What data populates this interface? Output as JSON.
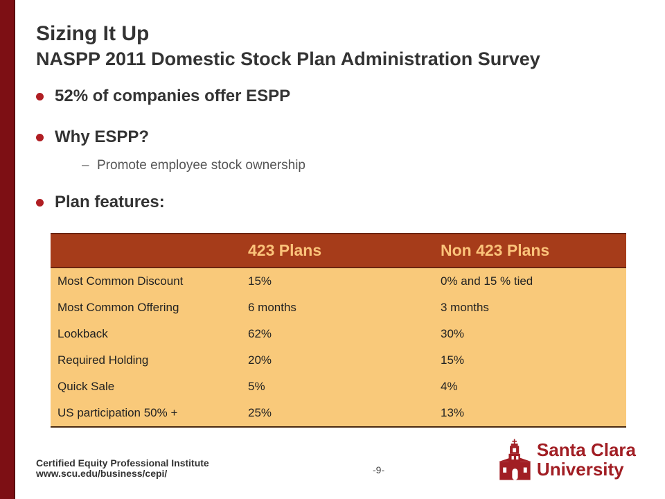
{
  "slide": {
    "title": "Sizing It Up",
    "subtitle": "NASPP 2011 Domestic Stock Plan Administration Survey"
  },
  "bullets": [
    {
      "text": "52% of companies offer ESPP"
    },
    {
      "text": "Why ESPP?",
      "sub": [
        "Promote employee stock ownership"
      ]
    },
    {
      "text": "Plan features:"
    }
  ],
  "table": {
    "headers": [
      "",
      "423 Plans",
      "Non 423 Plans"
    ],
    "rows": [
      [
        "Most Common Discount",
        "15%",
        "0% and 15 % tied"
      ],
      [
        "Most Common Offering",
        "6 months",
        "3 months"
      ],
      [
        "Lookback",
        "62%",
        "30%"
      ],
      [
        "Required Holding",
        "20%",
        "15%"
      ],
      [
        "Quick Sale",
        "5%",
        "4%"
      ],
      [
        "US participation 50% +",
        "25%",
        "13%"
      ]
    ]
  },
  "footer": {
    "organization": "Certified Equity Professional Institute",
    "url": "www.scu.edu/business/cepi/",
    "page": "-9-"
  },
  "logo": {
    "line1": "Santa Clara",
    "line2": "University",
    "icon": "mission-church-icon"
  },
  "colors": {
    "accent_bar": "#7d0f14",
    "bullet": "#b01e23",
    "table_header_bg": "#a63c1a",
    "table_header_text": "#fbc37a",
    "table_body_bg": "#f9c97a",
    "logo": "#a11e24"
  }
}
